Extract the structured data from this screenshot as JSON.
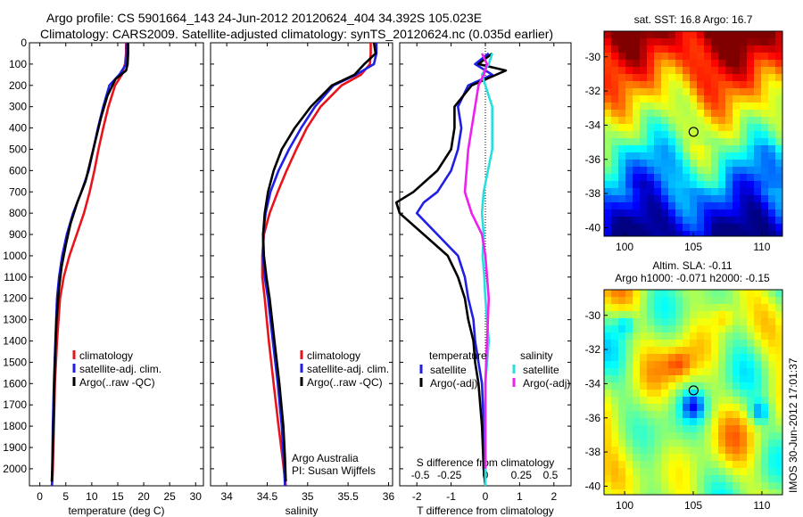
{
  "header": {
    "line1": "Argo profile: CS 5901664_143 24-Jun-2012 20120624_404 34.392S 105.023E",
    "line2": "Climatology: CARS2009. Satellite-adjusted climatology: synTS_20120624.nc (0.035d earlier)"
  },
  "colors": {
    "climatology": "#e8141c",
    "satellite": "#1f1fe6",
    "argo": "#000000",
    "sal_sat": "#28dede",
    "sal_argo": "#ee20ee"
  },
  "chart_data": [
    {
      "id": "temperature",
      "type": "line",
      "xlabel": "temperature (deg C)",
      "ylabel": "",
      "xlim": [
        -2,
        31.5
      ],
      "ylim": [
        0,
        2080
      ],
      "y_reversed": true,
      "xticks": [
        0,
        5,
        10,
        15,
        20,
        25,
        30
      ],
      "yticks": [
        0,
        100,
        200,
        300,
        400,
        500,
        600,
        700,
        800,
        900,
        1000,
        1100,
        1200,
        1300,
        1400,
        1500,
        1600,
        1700,
        1800,
        1900,
        2000
      ],
      "legend": [
        "climatology",
        "satellite-adj. clim.",
        "Argo(..raw -QC)"
      ],
      "legend_placement": "lower-right",
      "series": [
        {
          "name": "climatology",
          "color": "red",
          "x": [
            16.6,
            16.6,
            16.4,
            15.8,
            14.5,
            13.2,
            12.2,
            11.3,
            10.5,
            9.6,
            8.5,
            7.1,
            5.7,
            4.6,
            3.9,
            3.3,
            2.9,
            2.7,
            2.5,
            2.4,
            2.3
          ],
          "y": [
            0,
            50,
            100,
            150,
            200,
            300,
            400,
            500,
            600,
            700,
            800,
            900,
            1000,
            1100,
            1200,
            1400,
            1600,
            1800,
            2000,
            2060,
            2080
          ]
        },
        {
          "name": "satellite-adj. clim.",
          "color": "blue",
          "x": [
            16.7,
            16.7,
            16.6,
            15.3,
            13.4,
            12.2,
            11.2,
            10.3,
            9.4,
            8.0,
            6.4,
            5.2,
            4.3,
            3.7,
            3.3,
            3.0,
            2.7,
            2.5,
            2.4,
            2.35
          ],
          "y": [
            0,
            50,
            100,
            150,
            200,
            300,
            400,
            500,
            600,
            700,
            800,
            900,
            1000,
            1100,
            1200,
            1400,
            1600,
            1800,
            2000,
            2080
          ]
        },
        {
          "name": "Argo(..raw -QC)",
          "color": "black",
          "x": [
            17.0,
            17.0,
            16.9,
            16.6,
            14.6,
            13.0,
            11.8,
            10.8,
            9.8,
            8.8,
            7.2,
            5.9,
            5.0,
            4.2,
            3.7,
            3.2,
            2.9,
            2.7,
            2.5,
            2.4,
            2.3
          ],
          "y": [
            0,
            50,
            100,
            130,
            170,
            250,
            350,
            450,
            550,
            650,
            750,
            850,
            950,
            1050,
            1150,
            1300,
            1500,
            1700,
            1900,
            2000,
            2060
          ]
        }
      ]
    },
    {
      "id": "salinity",
      "type": "line",
      "xlabel": "salinity",
      "xlim": [
        33.8,
        36.05
      ],
      "ylim": [
        0,
        2080
      ],
      "y_reversed": true,
      "xticks": [
        34,
        34.5,
        35,
        35.5,
        36
      ],
      "legend": [
        "climatology",
        "satellite-adj. clim.",
        "Argo(..raw -QC)"
      ],
      "legend_placement": "lower-right",
      "annotations": [
        "Argo Australia",
        "PI: Susan Wijffels"
      ],
      "series": [
        {
          "name": "climatology",
          "color": "red",
          "x": [
            35.78,
            35.78,
            35.77,
            35.66,
            35.42,
            35.16,
            34.99,
            34.86,
            34.74,
            34.63,
            34.53,
            34.46,
            34.44,
            34.44,
            34.47,
            34.52,
            34.58,
            34.64,
            34.69,
            34.72,
            34.73
          ],
          "y": [
            0,
            50,
            100,
            150,
            200,
            300,
            400,
            500,
            600,
            700,
            800,
            900,
            1000,
            1100,
            1200,
            1400,
            1600,
            1800,
            1950,
            2050,
            2080
          ]
        },
        {
          "name": "satellite-adj. clim.",
          "color": "blue",
          "x": [
            35.85,
            35.85,
            35.82,
            35.6,
            35.32,
            35.09,
            34.92,
            34.77,
            34.64,
            34.54,
            34.48,
            34.45,
            34.45,
            34.47,
            34.51,
            34.57,
            34.63,
            34.68,
            34.71,
            34.72
          ],
          "y": [
            0,
            50,
            100,
            150,
            200,
            300,
            400,
            500,
            600,
            700,
            800,
            900,
            1000,
            1100,
            1200,
            1400,
            1600,
            1800,
            2000,
            2080
          ]
        },
        {
          "name": "Argo(..raw -QC)",
          "color": "black",
          "x": [
            35.82,
            35.84,
            35.7,
            35.58,
            35.3,
            35.04,
            34.84,
            34.68,
            34.58,
            34.51,
            34.47,
            34.45,
            34.46,
            34.49,
            34.53,
            34.59,
            34.65,
            34.7,
            34.72,
            34.73
          ],
          "y": [
            0,
            50,
            100,
            150,
            200,
            300,
            400,
            500,
            600,
            700,
            800,
            900,
            1000,
            1100,
            1200,
            1400,
            1600,
            1800,
            1950,
            2060
          ]
        }
      ]
    },
    {
      "id": "difference",
      "type": "line",
      "xlabel": "T difference from climatology",
      "top_axis_label": "S difference from climatology",
      "xlim": [
        -2.5,
        2.5
      ],
      "ylim": [
        0,
        2080
      ],
      "y_reversed": true,
      "xticks": [
        -2,
        -1,
        0,
        1,
        2
      ],
      "top_ticks": [
        "-0.5",
        "-0.25",
        "0",
        "0.25",
        "0.5"
      ],
      "legend_titles": [
        "temperature",
        "salinity"
      ],
      "legend": [
        "satellite",
        "Argo(-adj)",
        "satellite",
        "Argo(-adj)"
      ],
      "series": [
        {
          "name": "temperature satellite",
          "color": "blue",
          "x": [
            0.1,
            -0.3,
            0.2,
            -0.5,
            -0.8,
            -0.7,
            -0.8,
            -1.0,
            -1.4,
            -1.8,
            -2.0,
            -1.4,
            -0.8,
            -0.6,
            -0.5,
            -0.35,
            -0.3,
            -0.2,
            -0.1,
            -0.05,
            -0.05,
            0
          ],
          "y": [
            50,
            100,
            150,
            200,
            300,
            400,
            500,
            600,
            700,
            750,
            800,
            900,
            1000,
            1100,
            1200,
            1300,
            1400,
            1500,
            1600,
            1800,
            2000,
            2080
          ]
        },
        {
          "name": "temperature Argo(-adj)",
          "color": "black",
          "x": [
            0.2,
            -0.2,
            0.6,
            -0.4,
            -0.9,
            -0.9,
            -1.0,
            -1.4,
            -2.1,
            -2.6,
            -2.5,
            -1.8,
            -1.1,
            -0.8,
            -0.6,
            -0.5,
            -0.35,
            -0.3,
            -0.2,
            -0.1,
            -0.05,
            0
          ],
          "y": [
            50,
            100,
            130,
            200,
            300,
            400,
            500,
            600,
            700,
            750,
            800,
            900,
            1000,
            1100,
            1200,
            1300,
            1400,
            1500,
            1600,
            1800,
            2000,
            2080
          ]
        },
        {
          "name": "salinity satellite",
          "color": "cyan",
          "x": [
            0.2,
            0.1,
            -0.1,
            0.0,
            0.2,
            0.2,
            -0.05,
            -0.1,
            -0.05,
            -0.08,
            -0.03,
            0.0,
            0.05,
            0.1,
            0.05,
            0.0,
            0.0,
            0.0,
            0.0,
            0.0
          ],
          "y": [
            50,
            100,
            150,
            200,
            300,
            500,
            700,
            800,
            900,
            1000,
            1100,
            1200,
            1300,
            1400,
            1500,
            1600,
            1800,
            1900,
            2000,
            2080
          ]
        },
        {
          "name": "salinity Argo(-adj)",
          "color": "magenta",
          "x": [
            -0.1,
            0.05,
            -0.05,
            -0.2,
            -0.3,
            -0.5,
            -0.6,
            -0.4,
            -0.1,
            0.0,
            0.1,
            0.05,
            0.0,
            0.0,
            0.0
          ],
          "y": [
            50,
            100,
            150,
            200,
            300,
            500,
            700,
            800,
            900,
            1000,
            1200,
            1400,
            1600,
            1800,
            2000
          ]
        }
      ]
    },
    {
      "id": "sst_map",
      "type": "heatmap",
      "title": "sat. SST: 16.8 Argo: 16.7",
      "xlim": [
        98.5,
        111.5
      ],
      "ylim": [
        -40.5,
        -28.5
      ],
      "xticks": [
        100,
        105,
        110
      ],
      "yticks": [
        -30,
        -32,
        -34,
        -36,
        -38,
        -40
      ],
      "marker": {
        "lon": 105.023,
        "lat": -34.392
      },
      "colormap": "jet"
    },
    {
      "id": "sla_map",
      "type": "heatmap",
      "title_line1": "Altim. SLA: -0.11",
      "title_line2": "Argo h1000: -0.071 h2000: -0.15",
      "xlim": [
        98.5,
        111.5
      ],
      "ylim": [
        -40.5,
        -28.5
      ],
      "xticks": [
        100,
        105,
        110
      ],
      "yticks": [
        -30,
        -32,
        -34,
        -36,
        -38,
        -40
      ],
      "marker": {
        "lon": 105.023,
        "lat": -34.392
      },
      "colormap": "jet"
    }
  ],
  "footer": {
    "vertical_stamp": "IMOS 30-Jun-2012 17:01:37"
  }
}
